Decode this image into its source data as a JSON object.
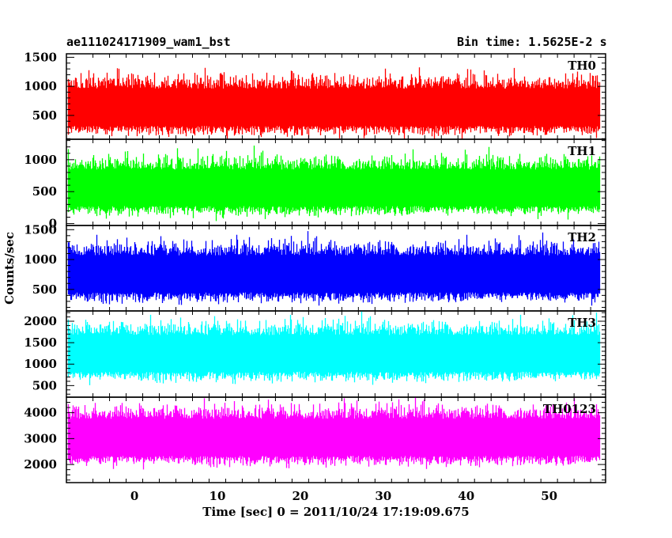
{
  "header": {
    "title_left": "ae111024171909_wam1_bst",
    "title_right": "Bin time: 1.5625E-2 s"
  },
  "chart_data": {
    "type": "line",
    "title": "ae111024171909_wam1_bst",
    "subtitle": "Bin time: 1.5625E-2 s",
    "xlabel": "Time [sec] 0 = 2011/10/24 17:19:09.675",
    "ylabel": "Counts/sec",
    "xlim": [
      -8.2,
      56.8
    ],
    "x_ticks": [
      0,
      10,
      20,
      30,
      40,
      50
    ],
    "data_x_range": [
      -8.0,
      56.0
    ],
    "bin_time_s": 0.015625,
    "grid": false,
    "panels": [
      {
        "name": "TH0",
        "color": "#ff0000",
        "ylim": [
          90,
          1560
        ],
        "yticks": [
          500,
          1000,
          1500
        ],
        "ytick_labels": [
          "500",
          "1000",
          "1500"
        ],
        "mean": 640,
        "low": 100,
        "high": 1560
      },
      {
        "name": "TH1",
        "color": "#00ff00",
        "ylim": [
          -30,
          1320
        ],
        "yticks": [
          0,
          500,
          1000
        ],
        "ytick_labels": [
          "0",
          "500",
          "1000"
        ],
        "mean": 560,
        "low": 20,
        "high": 1320
      },
      {
        "name": "TH2",
        "color": "#0000ff",
        "ylim": [
          140,
          1570
        ],
        "yticks": [
          500,
          1000,
          1500
        ],
        "ytick_labels": [
          "500",
          "1000",
          "1500"
        ],
        "mean": 760,
        "low": 160,
        "high": 1570
      },
      {
        "name": "TH3",
        "color": "#00ffff",
        "ylim": [
          230,
          2240
        ],
        "yticks": [
          500,
          1000,
          1500,
          2000
        ],
        "ytick_labels": [
          "500",
          "1000",
          "1500",
          "2000"
        ],
        "mean": 1250,
        "low": 300,
        "high": 2240
      },
      {
        "name": "TH0123",
        "color": "#ff00ff",
        "ylim": [
          1300,
          4600
        ],
        "yticks": [
          2000,
          3000,
          4000
        ],
        "ytick_labels": [
          "2000",
          "3000",
          "4000"
        ],
        "mean": 3050,
        "low": 1350,
        "high": 4600
      }
    ]
  }
}
